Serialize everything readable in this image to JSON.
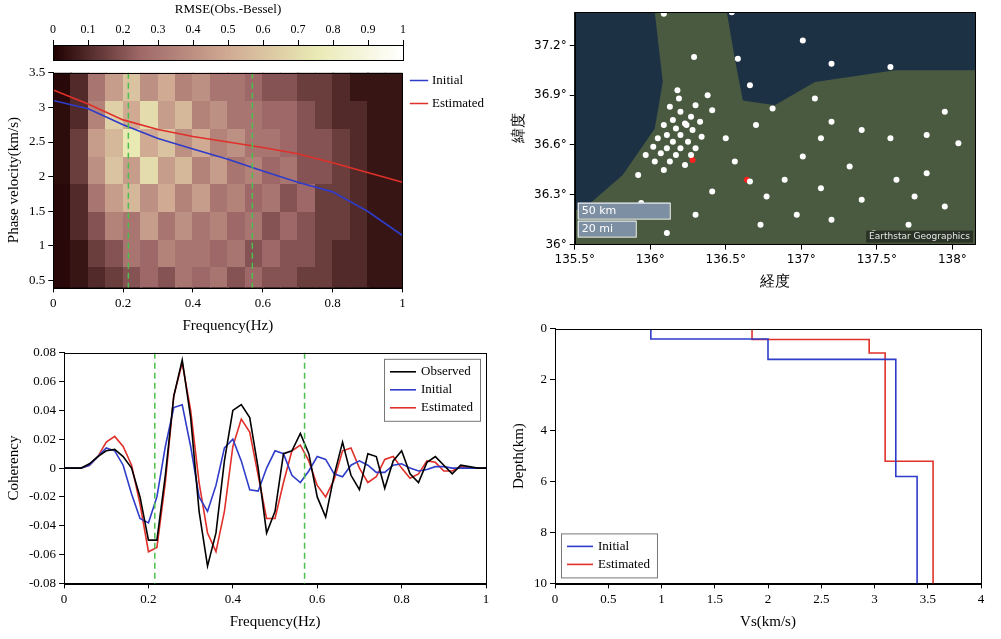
{
  "chart_data": [
    {
      "type": "heatmap",
      "xlabel": "Frequency(Hz)",
      "ylabel": "Phase velocity(km/s)",
      "xlim": [
        0,
        1
      ],
      "ylim": [
        0.4,
        3.5
      ],
      "xticks": [
        0,
        0.2,
        0.4,
        0.6,
        0.8,
        1
      ],
      "yticks": [
        0.5,
        1,
        1.5,
        2,
        2.5,
        3,
        3.5
      ],
      "grid": false,
      "legend": "right",
      "colorbar": {
        "title": "RMSE(Obs.-Bessel)",
        "range": [
          0,
          1
        ],
        "ticks": [
          0,
          0.1,
          0.2,
          0.3,
          0.4,
          0.5,
          0.6,
          0.7,
          0.8,
          0.9,
          1
        ]
      },
      "heatmap": {
        "x": [
          0.025,
          0.075,
          0.125,
          0.175,
          0.225,
          0.275,
          0.325,
          0.375,
          0.425,
          0.475,
          0.525,
          0.575,
          0.625,
          0.675,
          0.725,
          0.775,
          0.825,
          0.875,
          0.925,
          0.975
        ],
        "y": [
          0.5,
          0.9,
          1.3,
          1.7,
          2.1,
          2.5,
          2.9,
          3.3
        ],
        "z": [
          [
            0.02,
            0.05,
            0.1,
            0.15,
            0.2,
            0.25,
            0.2,
            0.3,
            0.25,
            0.3,
            0.2,
            0.25,
            0.2,
            0.2,
            0.15,
            0.15,
            0.1,
            0.1,
            0.05,
            0.05
          ],
          [
            0.02,
            0.05,
            0.15,
            0.2,
            0.3,
            0.25,
            0.35,
            0.3,
            0.3,
            0.25,
            0.3,
            0.2,
            0.25,
            0.2,
            0.2,
            0.15,
            0.1,
            0.1,
            0.05,
            0.05
          ],
          [
            0.02,
            0.1,
            0.2,
            0.35,
            0.3,
            0.45,
            0.3,
            0.4,
            0.3,
            0.35,
            0.25,
            0.3,
            0.2,
            0.25,
            0.2,
            0.15,
            0.15,
            0.1,
            0.05,
            0.05
          ],
          [
            0.02,
            0.1,
            0.3,
            0.45,
            0.55,
            0.4,
            0.5,
            0.35,
            0.45,
            0.3,
            0.35,
            0.25,
            0.3,
            0.2,
            0.25,
            0.15,
            0.15,
            0.1,
            0.05,
            0.05
          ],
          [
            0.03,
            0.15,
            0.4,
            0.6,
            0.45,
            0.7,
            0.45,
            0.55,
            0.35,
            0.45,
            0.3,
            0.35,
            0.25,
            0.3,
            0.2,
            0.2,
            0.15,
            0.1,
            0.05,
            0.05
          ],
          [
            0.03,
            0.15,
            0.45,
            0.55,
            0.75,
            0.5,
            0.6,
            0.4,
            0.5,
            0.35,
            0.4,
            0.3,
            0.3,
            0.25,
            0.2,
            0.2,
            0.15,
            0.1,
            0.05,
            0.05
          ],
          [
            0.03,
            0.1,
            0.35,
            0.65,
            0.5,
            0.7,
            0.45,
            0.55,
            0.35,
            0.4,
            0.3,
            0.3,
            0.25,
            0.25,
            0.2,
            0.15,
            0.1,
            0.1,
            0.05,
            0.05
          ],
          [
            0.02,
            0.1,
            0.3,
            0.45,
            0.6,
            0.4,
            0.5,
            0.35,
            0.4,
            0.3,
            0.3,
            0.25,
            0.2,
            0.2,
            0.15,
            0.15,
            0.1,
            0.05,
            0.05,
            0.05
          ]
        ]
      },
      "reference_lines": {
        "x": [
          0.215,
          0.57
        ],
        "color": "#4cbf4c",
        "line_style": "dashed"
      },
      "series": [
        {
          "name": "Initial",
          "color": "#2e3cc9",
          "type": "line",
          "x": [
            0,
            0.1,
            0.2,
            0.3,
            0.4,
            0.5,
            0.6,
            0.7,
            0.8,
            0.9,
            1
          ],
          "values": [
            3.1,
            2.98,
            2.75,
            2.55,
            2.4,
            2.25,
            2.08,
            1.92,
            1.78,
            1.5,
            1.15
          ]
        },
        {
          "name": "Estimated",
          "color": "#e0302a",
          "type": "line",
          "x": [
            0,
            0.1,
            0.2,
            0.3,
            0.4,
            0.5,
            0.6,
            0.7,
            0.8,
            0.9,
            1
          ],
          "values": [
            3.25,
            3.05,
            2.82,
            2.68,
            2.58,
            2.5,
            2.42,
            2.33,
            2.2,
            2.06,
            1.92
          ]
        }
      ]
    },
    {
      "type": "line",
      "xlabel": "Frequency(Hz)",
      "ylabel": "Coherency",
      "xlim": [
        0,
        1
      ],
      "ylim": [
        -0.08,
        0.08
      ],
      "xticks": [
        0,
        0.2,
        0.4,
        0.6,
        0.8,
        1
      ],
      "yticks": [
        -0.08,
        -0.06,
        -0.04,
        -0.02,
        0,
        0.02,
        0.04,
        0.06,
        0.08
      ],
      "grid": false,
      "legend": "upper right",
      "reference_lines": {
        "x": [
          0.215,
          0.57
        ],
        "color": "#4cbf4c",
        "line_style": "dashed"
      },
      "x": [
        0,
        0.02,
        0.04,
        0.06,
        0.08,
        0.1,
        0.12,
        0.14,
        0.16,
        0.18,
        0.2,
        0.22,
        0.24,
        0.26,
        0.28,
        0.3,
        0.32,
        0.34,
        0.36,
        0.38,
        0.4,
        0.42,
        0.44,
        0.46,
        0.48,
        0.5,
        0.52,
        0.54,
        0.56,
        0.58,
        0.6,
        0.62,
        0.64,
        0.66,
        0.68,
        0.7,
        0.72,
        0.74,
        0.76,
        0.78,
        0.8,
        0.82,
        0.84,
        0.86,
        0.88,
        0.9,
        0.92,
        0.94,
        0.96,
        0.98,
        1
      ],
      "series": [
        {
          "name": "Observed",
          "color": "#000000",
          "values": [
            0,
            0,
            0,
            0.003,
            0.008,
            0.012,
            0.013,
            0.008,
            0,
            -0.02,
            -0.05,
            -0.05,
            -0.005,
            0.05,
            0.075,
            0.035,
            -0.03,
            -0.068,
            -0.045,
            0.005,
            0.04,
            0.044,
            0.035,
            0,
            -0.045,
            -0.03,
            0.01,
            0.012,
            0.024,
            0.01,
            -0.02,
            -0.034,
            -0.005,
            0.018,
            -0.005,
            -0.015,
            0.01,
            0.008,
            -0.014,
            0.005,
            0.012,
            -0.004,
            -0.01,
            0.004,
            0.008,
            0.002,
            -0.004,
            0.002,
            0.001,
            0,
            0
          ]
        },
        {
          "name": "Initial",
          "color": "#2e3cc9",
          "values": [
            0,
            0,
            0,
            0.002,
            0.008,
            0.014,
            0.012,
            0.002,
            -0.018,
            -0.035,
            -0.038,
            -0.02,
            0.015,
            0.042,
            0.044,
            0.015,
            -0.02,
            -0.03,
            -0.012,
            0.014,
            0.02,
            0.005,
            -0.015,
            -0.016,
            0,
            0.012,
            0.01,
            -0.005,
            -0.01,
            -0.002,
            0.008,
            0.006,
            -0.004,
            -0.006,
            0.002,
            0.005,
            0.002,
            -0.003,
            -0.003,
            0.002,
            0.003,
            0,
            -0.002,
            -0.001,
            0.001,
            0.001,
            0,
            0,
            0,
            0,
            0
          ]
        },
        {
          "name": "Estimated",
          "color": "#e0302a",
          "values": [
            0,
            0,
            0,
            0.002,
            0.008,
            0.018,
            0.022,
            0.015,
            0.002,
            -0.025,
            -0.058,
            -0.055,
            -0.01,
            0.05,
            0.073,
            0.04,
            -0.01,
            -0.045,
            -0.058,
            -0.03,
            0.015,
            0.034,
            0.025,
            -0.005,
            -0.035,
            -0.035,
            -0.01,
            0.012,
            0.016,
            0.005,
            -0.012,
            -0.02,
            -0.008,
            0.012,
            0.014,
            0,
            -0.01,
            -0.006,
            0.006,
            0.008,
            0,
            -0.007,
            -0.004,
            0.005,
            0.004,
            -0.002,
            -0.002,
            0.001,
            0,
            0,
            0
          ]
        }
      ]
    },
    {
      "type": "scatter",
      "xlabel": "経度",
      "ylabel": "緯度",
      "xlim": [
        135.5,
        138.15
      ],
      "ylim": [
        36.0,
        37.4
      ],
      "xticks": [
        {
          "value": 135.5,
          "label": "135.5°"
        },
        {
          "value": 136,
          "label": "136°"
        },
        {
          "value": 136.5,
          "label": "136.5°"
        },
        {
          "value": 137,
          "label": "137°"
        },
        {
          "value": 137.5,
          "label": "137.5°"
        },
        {
          "value": 138,
          "label": "138°"
        }
      ],
      "yticks": [
        {
          "value": 36,
          "label": "36°"
        },
        {
          "value": 36.3,
          "label": "36.3°"
        },
        {
          "value": 36.6,
          "label": "36.6°"
        },
        {
          "value": 36.9,
          "label": "36.9°"
        },
        {
          "value": 37.2,
          "label": "37.2°"
        }
      ],
      "grid": false,
      "scale_bar": [
        "50 km",
        "20 mi"
      ],
      "attribution": "Earthstar Geographics",
      "series": [
        {
          "color": "#ffffff",
          "marker": "circle",
          "x": [
            136.09,
            136.54,
            136.29,
            136.18,
            136.24,
            136.2,
            136.27,
            136.15,
            136.23,
            136.09,
            136.17,
            136.28,
            136.11,
            136.2,
            136.05,
            136.15,
            136.25,
            136.02,
            136.11,
            136.2,
            136.3,
            136.07,
            136.17,
            135.97,
            136.27,
            136.03,
            136.13,
            136.23,
            136.09,
            135.92,
            136.34,
            136.33,
            136.13,
            136.19,
            136.3,
            136.41,
            136.38,
            136.5,
            136.7,
            136.56,
            136.66,
            136.41,
            136.77,
            136.89,
            137.01,
            137.13,
            137.2,
            137.32,
            137.4,
            137.59,
            137.83,
            137.95,
            138.04,
            137.83,
            137.63,
            137.75,
            137.4,
            137.13,
            137.2,
            137.48,
            137.71,
            137.95,
            136.97,
            136.73,
            136.3,
            136.11,
            135.84,
            135.94,
            137.01,
            137.2,
            137.59,
            136.66,
            136.81,
            137.09,
            136.58
          ],
          "y": [
            37.39,
            37.4,
            37.13,
            36.93,
            36.72,
            36.8,
            36.77,
            36.75,
            36.73,
            36.72,
            36.7,
            36.69,
            36.66,
            36.66,
            36.64,
            36.62,
            36.62,
            36.59,
            36.58,
            36.58,
            36.58,
            36.55,
            36.54,
            36.54,
            36.54,
            36.5,
            36.5,
            36.48,
            36.45,
            36.42,
            36.65,
            36.74,
            36.83,
            36.88,
            36.84,
            36.81,
            36.9,
            36.64,
            36.72,
            36.5,
            36.38,
            36.32,
            36.29,
            36.39,
            36.53,
            36.64,
            36.74,
            36.47,
            36.69,
            36.64,
            36.66,
            36.8,
            36.61,
            36.43,
            36.39,
            36.29,
            36.27,
            36.34,
            36.15,
            36.07,
            36.12,
            36.23,
            36.18,
            36.12,
            36.18,
            36.07,
            36.12,
            36.25,
            37.23,
            37.09,
            37.07,
            36.96,
            36.82,
            36.88,
            37.12
          ]
        },
        {
          "color": "#ff2020",
          "marker": "circle",
          "x": [
            136.28,
            136.64
          ],
          "y": [
            36.51,
            36.39
          ]
        }
      ]
    },
    {
      "type": "step",
      "xlabel": "Vs(km/s)",
      "ylabel": "Depth(km)",
      "xlim": [
        0,
        4
      ],
      "ylim": [
        0,
        10
      ],
      "xticks": [
        0,
        0.5,
        1,
        1.5,
        2,
        2.5,
        3,
        3.5,
        4
      ],
      "yticks": [
        0,
        2,
        4,
        6,
        8,
        10
      ],
      "grid": false,
      "legend": "lower left",
      "series": [
        {
          "name": "Initial",
          "color": "#2e3cc9",
          "vs": [
            0.9,
            2.0,
            3.2,
            3.4
          ],
          "depth_top": [
            0,
            0.4,
            1.2,
            5.8
          ],
          "depth_bottom": [
            0.4,
            1.2,
            5.8,
            10
          ]
        },
        {
          "name": "Estimated",
          "color": "#e0302a",
          "vs": [
            1.85,
            2.95,
            3.1,
            3.55
          ],
          "depth_top": [
            0,
            0.42,
            0.95,
            5.2
          ],
          "depth_bottom": [
            0.42,
            0.95,
            5.2,
            10
          ]
        }
      ]
    }
  ]
}
